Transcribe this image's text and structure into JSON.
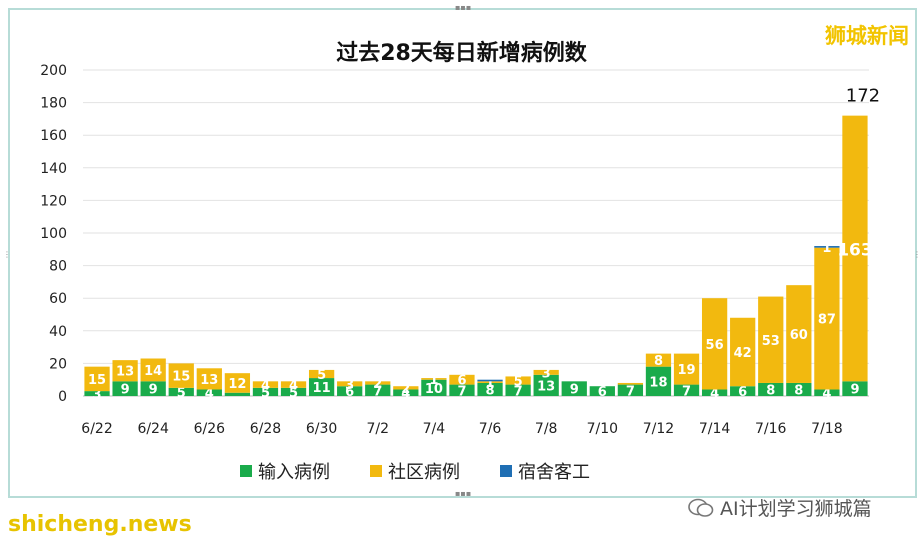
{
  "brand": "狮城新闻",
  "watermark": "AI计划学习狮城篇",
  "source_site": "shicheng.news",
  "chart_data": {
    "type": "bar",
    "stacked": true,
    "title": "过去28天每日新增病例数",
    "categories": [
      "6/22",
      "6/23",
      "6/24",
      "6/25",
      "6/26",
      "6/27",
      "6/28",
      "6/29",
      "6/30",
      "7/1",
      "7/2",
      "7/3",
      "7/4",
      "7/5",
      "7/6",
      "7/7",
      "7/8",
      "7/9",
      "7/10",
      "7/11",
      "7/12",
      "7/13",
      "7/14",
      "7/15",
      "7/16",
      "7/17",
      "7/18",
      "7/19"
    ],
    "x_tick_labels": [
      "6/22",
      "6/24",
      "6/26",
      "6/28",
      "6/30",
      "7/2",
      "7/4",
      "7/6",
      "7/8",
      "7/10",
      "7/12",
      "7/14",
      "7/16",
      "7/18"
    ],
    "ylim": [
      0,
      200
    ],
    "yticks": [
      0,
      20,
      40,
      60,
      80,
      100,
      120,
      140,
      160,
      180,
      200
    ],
    "legend_position": "bottom",
    "series": [
      {
        "name": "输入病例",
        "color": "#1aab4b",
        "values": [
          3,
          9,
          9,
          5,
          4,
          2,
          5,
          5,
          11,
          6,
          7,
          4,
          10,
          7,
          8,
          7,
          13,
          9,
          6,
          7,
          18,
          7,
          4,
          6,
          8,
          8,
          4,
          9
        ],
        "labels": [
          "3",
          "9",
          "9",
          "5",
          "4",
          "",
          "5",
          "5",
          "11",
          "6",
          "7",
          "4",
          "10",
          "7",
          "8",
          "7",
          "13",
          "9",
          "6",
          "7",
          "18",
          "7",
          "4",
          "6",
          "8",
          "8",
          "4",
          "9"
        ]
      },
      {
        "name": "社区病例",
        "color": "#f2b90f",
        "values": [
          15,
          13,
          14,
          15,
          13,
          12,
          4,
          4,
          5,
          3,
          2,
          2,
          1,
          6,
          1,
          5,
          3,
          0,
          0,
          1,
          8,
          19,
          56,
          42,
          53,
          60,
          87,
          163
        ],
        "labels": [
          "15",
          "13",
          "14",
          "15",
          "13",
          "12",
          "4",
          "4",
          "5",
          "3",
          "2",
          "2",
          "1",
          "6",
          "1",
          "5",
          "3",
          "",
          "",
          "",
          "8",
          "19",
          "56",
          "42",
          "53",
          "60",
          "87",
          "163"
        ]
      },
      {
        "name": "宿舍客工",
        "color": "#1f6fb4",
        "values": [
          0,
          0,
          0,
          0,
          0,
          0,
          0,
          0,
          0,
          0,
          0,
          0,
          0,
          0,
          1,
          0,
          0,
          0,
          0,
          0,
          0,
          0,
          0,
          0,
          0,
          0,
          1,
          0
        ],
        "labels": [
          "",
          "",
          "",
          "",
          "",
          "",
          "",
          "",
          "",
          "",
          "",
          "",
          "",
          "",
          "",
          "",
          "",
          "",
          "",
          "",
          "",
          "",
          "",
          "",
          "",
          "",
          "1",
          ""
        ]
      }
    ],
    "annotations": [
      {
        "category": "7/19",
        "text": "172"
      }
    ]
  }
}
